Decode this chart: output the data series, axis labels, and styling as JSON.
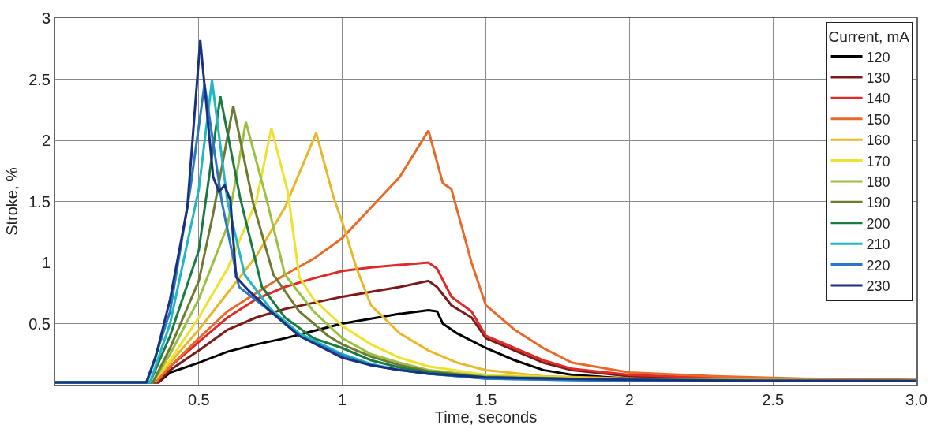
{
  "chart_data": {
    "type": "line",
    "xlabel": "Time, seconds",
    "ylabel": "Stroke, %",
    "legend_title": "Current, mA",
    "legend": "top right",
    "grid": true,
    "line_style": "solid",
    "marker": "none",
    "xlim": [
      0,
      3
    ],
    "xticks": [
      0.5,
      1,
      1.5,
      2,
      2.5,
      {
        "value": 3,
        "label": "3.0"
      }
    ],
    "ylim": [
      0,
      3
    ],
    "yticks": [
      0.5,
      1,
      1.5,
      2,
      2.5,
      3
    ],
    "series": [
      {
        "name": "120",
        "color": "#000000",
        "x": [
          0,
          0.36,
          0.4,
          0.5,
          0.6,
          0.7,
          0.8,
          0.9,
          1.0,
          1.1,
          1.2,
          1.3,
          1.33,
          1.35,
          1.4,
          1.5,
          1.6,
          1.7,
          1.8,
          2.0,
          2.5,
          3.0
        ],
        "values": [
          0.02,
          0.02,
          0.1,
          0.18,
          0.27,
          0.33,
          0.38,
          0.44,
          0.5,
          0.54,
          0.58,
          0.61,
          0.6,
          0.5,
          0.42,
          0.3,
          0.2,
          0.12,
          0.08,
          0.05,
          0.03,
          0.03
        ]
      },
      {
        "name": "130",
        "color": "#7a1a1a",
        "x": [
          0,
          0.36,
          0.4,
          0.5,
          0.6,
          0.7,
          0.8,
          0.9,
          1.0,
          1.1,
          1.2,
          1.3,
          1.33,
          1.38,
          1.45,
          1.5,
          1.6,
          1.7,
          1.8,
          2.0,
          2.5,
          3.0
        ],
        "values": [
          0.02,
          0.02,
          0.12,
          0.28,
          0.45,
          0.55,
          0.62,
          0.67,
          0.72,
          0.76,
          0.8,
          0.85,
          0.8,
          0.65,
          0.55,
          0.38,
          0.28,
          0.18,
          0.12,
          0.07,
          0.04,
          0.03
        ]
      },
      {
        "name": "140",
        "color": "#e02a2a",
        "x": [
          0.35,
          0.4,
          0.5,
          0.6,
          0.7,
          0.8,
          0.9,
          1.0,
          1.1,
          1.2,
          1.3,
          1.33,
          1.38,
          1.45,
          1.5,
          1.6,
          1.7,
          1.8,
          2.0,
          2.5,
          3.0
        ],
        "values": [
          0.02,
          0.15,
          0.35,
          0.55,
          0.7,
          0.8,
          0.87,
          0.93,
          0.96,
          0.98,
          1.0,
          0.95,
          0.72,
          0.6,
          0.4,
          0.3,
          0.2,
          0.13,
          0.08,
          0.04,
          0.03
        ]
      },
      {
        "name": "150",
        "color": "#e8692a",
        "x": [
          0.35,
          0.4,
          0.5,
          0.6,
          0.7,
          0.8,
          0.9,
          1.0,
          1.1,
          1.2,
          1.3,
          1.35,
          1.38,
          1.45,
          1.5,
          1.6,
          1.7,
          1.8,
          2.0,
          2.3,
          2.6,
          3.0
        ],
        "values": [
          0.02,
          0.15,
          0.38,
          0.6,
          0.75,
          0.9,
          1.03,
          1.2,
          1.45,
          1.7,
          2.08,
          1.65,
          1.6,
          1.0,
          0.65,
          0.45,
          0.3,
          0.18,
          0.1,
          0.07,
          0.05,
          0.04
        ]
      },
      {
        "name": "160",
        "color": "#e8b82a",
        "x": [
          0.34,
          0.4,
          0.5,
          0.6,
          0.7,
          0.8,
          0.909,
          0.97,
          1.0,
          1.05,
          1.1,
          1.2,
          1.3,
          1.4,
          1.5,
          1.7,
          2.0,
          3.0
        ],
        "values": [
          0.02,
          0.18,
          0.45,
          0.75,
          1.05,
          1.45,
          2.06,
          1.53,
          1.33,
          0.95,
          0.65,
          0.42,
          0.28,
          0.18,
          0.12,
          0.07,
          0.05,
          0.03
        ]
      },
      {
        "name": "170",
        "color": "#f0e030",
        "x": [
          0.34,
          0.4,
          0.5,
          0.6,
          0.7,
          0.753,
          0.81,
          0.85,
          0.9,
          1.0,
          1.1,
          1.2,
          1.3,
          1.5,
          2.0,
          3.0
        ],
        "values": [
          0.02,
          0.2,
          0.55,
          0.95,
          1.5,
          2.1,
          1.58,
          0.88,
          0.7,
          0.48,
          0.33,
          0.22,
          0.15,
          0.08,
          0.04,
          0.03
        ]
      },
      {
        "name": "180",
        "color": "#9ac040",
        "x": [
          0,
          0.34,
          0.4,
          0.5,
          0.6,
          0.664,
          0.737,
          0.8,
          0.9,
          1.0,
          1.1,
          1.2,
          1.3,
          1.5,
          2.0,
          3.0
        ],
        "values": [
          0.02,
          0.02,
          0.25,
          0.7,
          1.3,
          2.15,
          1.51,
          0.9,
          0.6,
          0.38,
          0.25,
          0.18,
          0.12,
          0.07,
          0.04,
          0.03
        ]
      },
      {
        "name": "190",
        "color": "#6e7a30",
        "x": [
          0,
          0.34,
          0.4,
          0.5,
          0.55,
          0.62,
          0.69,
          0.76,
          0.85,
          0.95,
          1.0,
          1.1,
          1.2,
          1.3,
          1.5,
          2.0,
          3.0
        ],
        "values": [
          0.02,
          0.02,
          0.3,
          0.85,
          1.4,
          2.28,
          1.48,
          0.9,
          0.6,
          0.4,
          0.33,
          0.23,
          0.16,
          0.11,
          0.06,
          0.04,
          0.03
        ]
      },
      {
        "name": "200",
        "color": "#1a7a40",
        "x": [
          0,
          0.33,
          0.4,
          0.5,
          0.575,
          0.644,
          0.72,
          0.8,
          0.9,
          1.0,
          1.1,
          1.2,
          1.3,
          1.5,
          2.0,
          3.0
        ],
        "values": [
          0.02,
          0.02,
          0.4,
          1.1,
          2.36,
          1.53,
          0.8,
          0.55,
          0.38,
          0.3,
          0.2,
          0.14,
          0.1,
          0.06,
          0.04,
          0.03
        ]
      },
      {
        "name": "210",
        "color": "#20b8c0",
        "x": [
          0,
          0.33,
          0.4,
          0.5,
          0.546,
          0.6,
          0.66,
          0.75,
          0.85,
          1.0,
          1.1,
          1.2,
          1.3,
          1.5,
          2.0,
          3.0
        ],
        "values": [
          0.02,
          0.02,
          0.5,
          1.6,
          2.49,
          1.5,
          0.9,
          0.62,
          0.42,
          0.25,
          0.17,
          0.12,
          0.09,
          0.05,
          0.03,
          0.03
        ]
      },
      {
        "name": "220",
        "color": "#2a78c0",
        "x": [
          0,
          0.32,
          0.4,
          0.47,
          0.52,
          0.58,
          0.64,
          0.75,
          0.85,
          1.0,
          1.1,
          1.2,
          1.3,
          1.5,
          2.0,
          3.0
        ],
        "values": [
          0.02,
          0.02,
          0.6,
          1.6,
          2.46,
          1.5,
          0.8,
          0.6,
          0.4,
          0.24,
          0.16,
          0.12,
          0.09,
          0.05,
          0.03,
          0.03
        ]
      },
      {
        "name": "230",
        "color": "#1a3080",
        "x": [
          0,
          0.317,
          0.35,
          0.4,
          0.46,
          0.505,
          0.55,
          0.57,
          0.59,
          0.61,
          0.63,
          0.67,
          0.75,
          0.85,
          1.0,
          1.1,
          1.2,
          1.3,
          1.5,
          2.0,
          2.5,
          3.0
        ],
        "values": [
          0.02,
          0.02,
          0.23,
          0.7,
          1.45,
          2.82,
          1.7,
          1.58,
          1.63,
          1.51,
          0.88,
          0.78,
          0.6,
          0.4,
          0.22,
          0.16,
          0.12,
          0.09,
          0.06,
          0.04,
          0.03,
          0.03
        ]
      }
    ]
  }
}
